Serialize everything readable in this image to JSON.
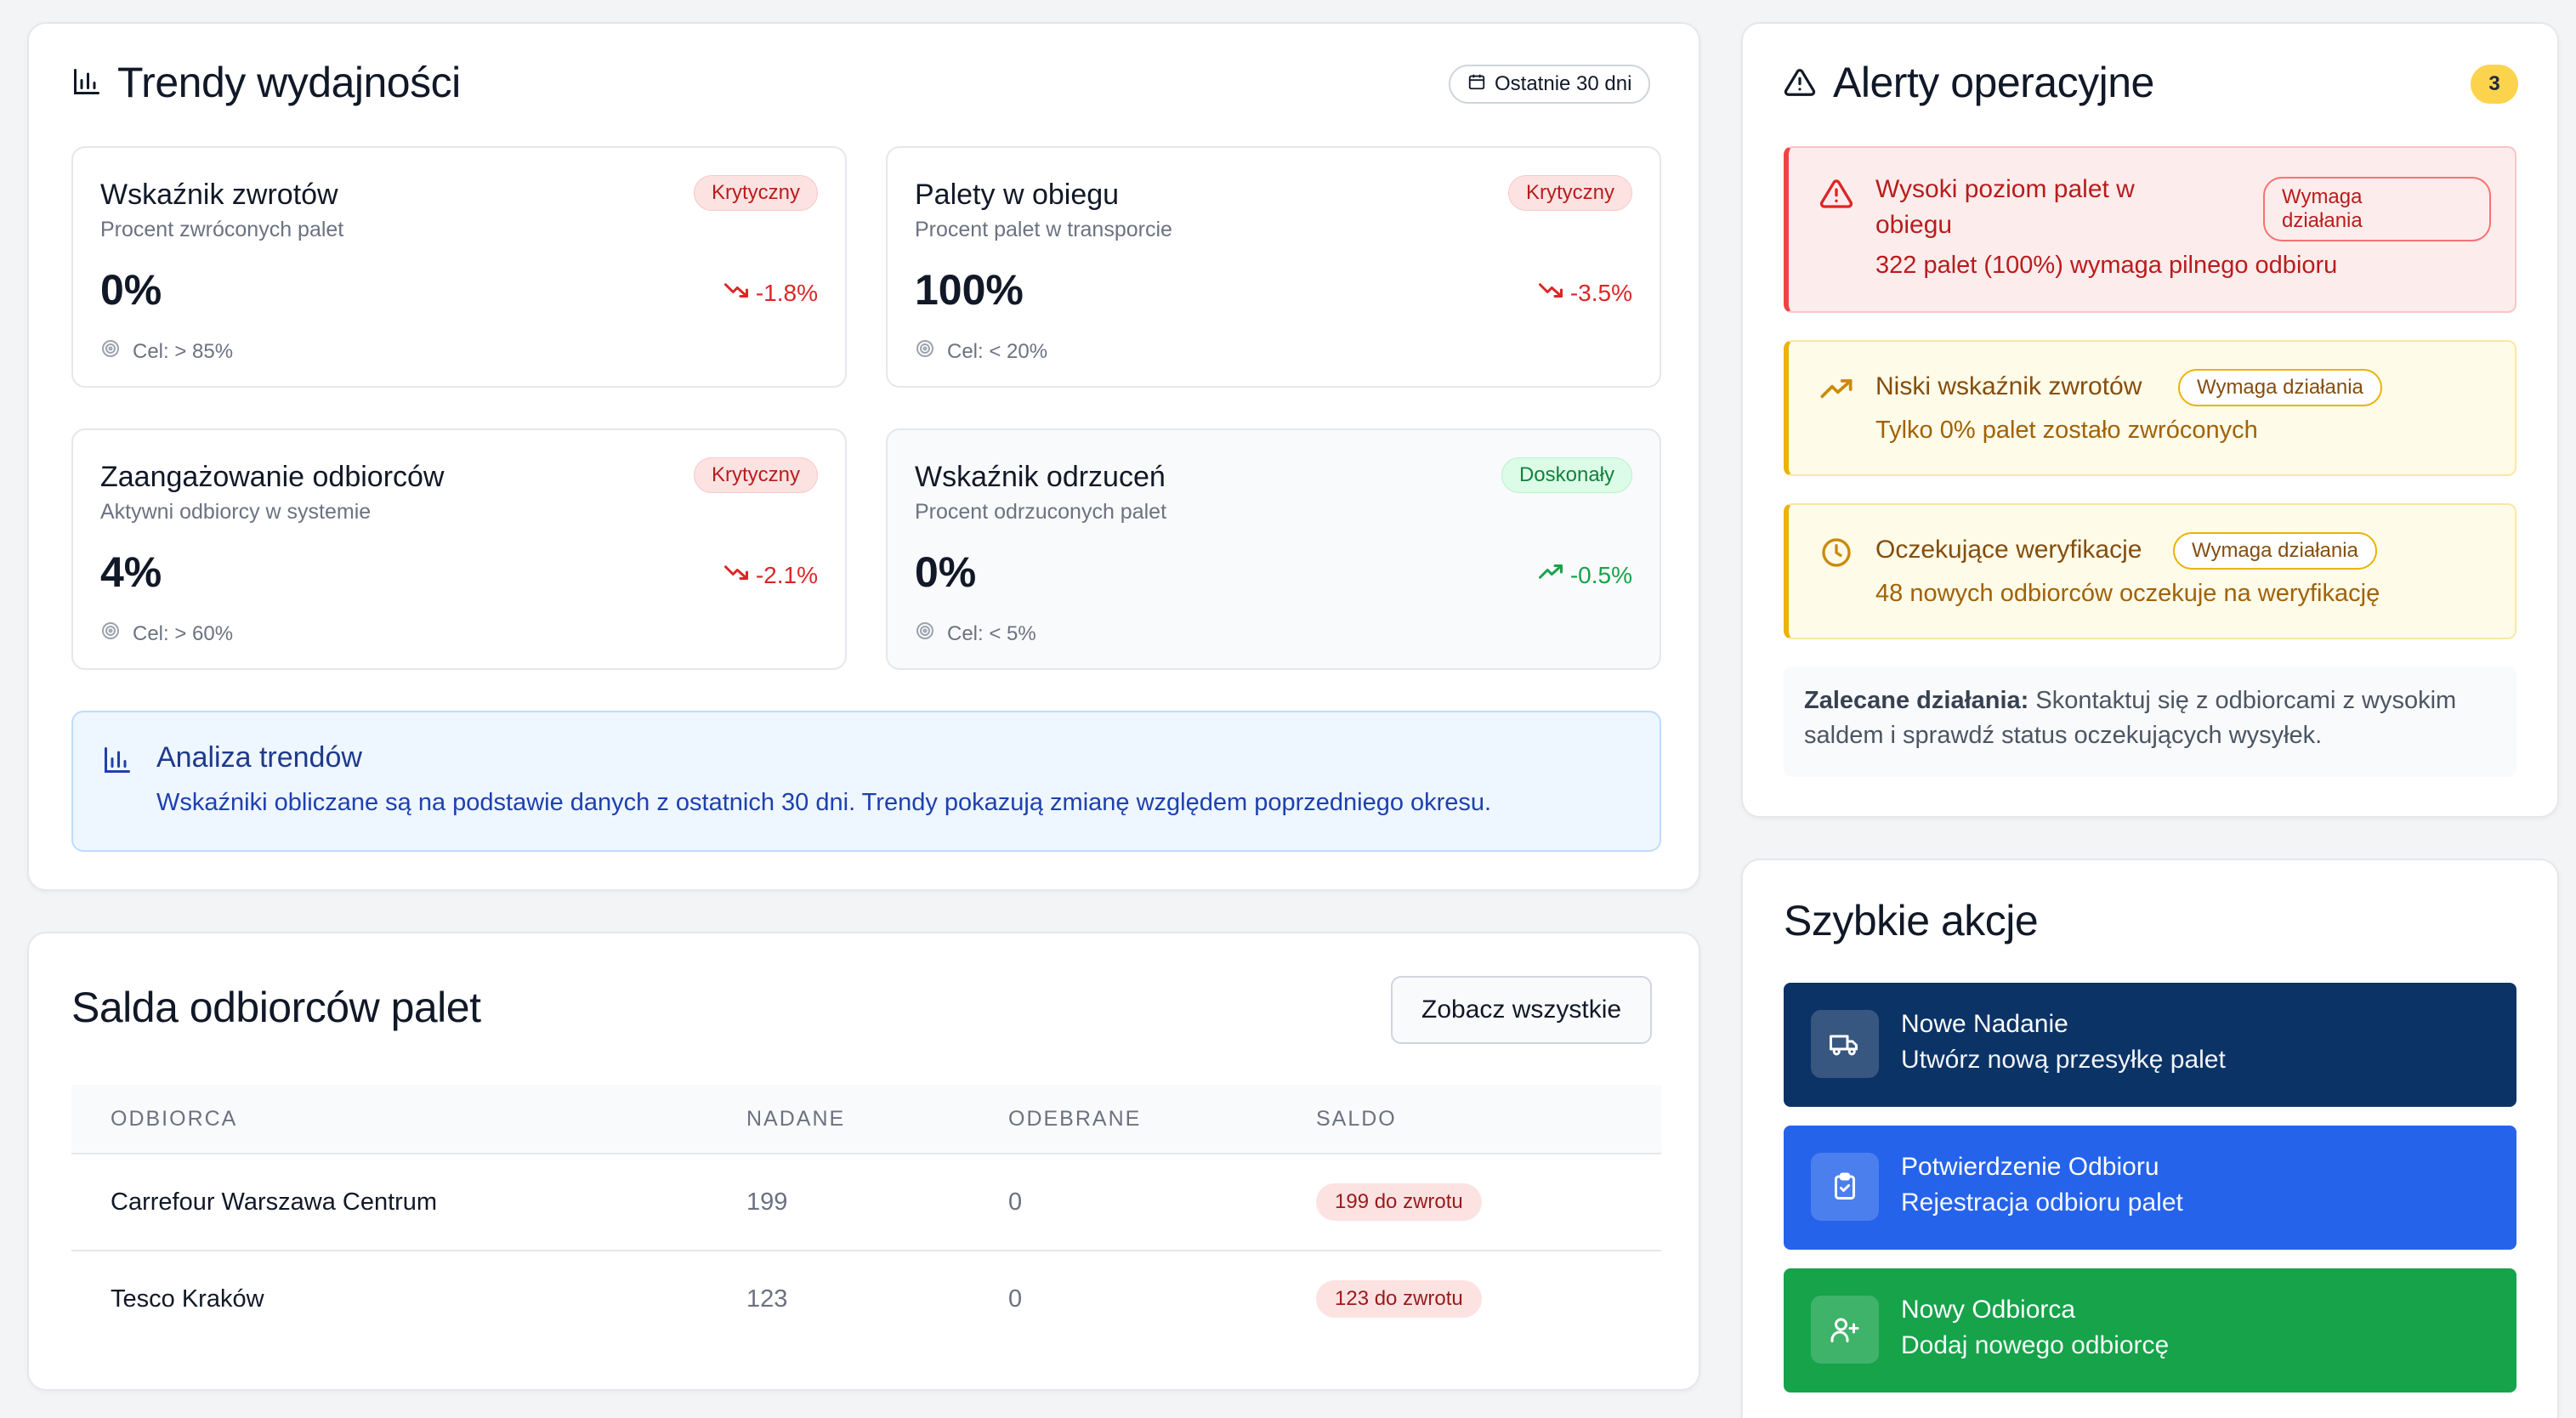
{
  "trends": {
    "title": "Trendy wydajności",
    "range": "Ostatnie 30 dni",
    "metrics": [
      {
        "title": "Wskaźnik zwrotów",
        "subtitle": "Procent zwróconych palet",
        "badge": "Krytyczny",
        "value": "0%",
        "trend": "-1.8%",
        "target": "Cel: > 85%"
      },
      {
        "title": "Palety w obiegu",
        "subtitle": "Procent palet w transporcie",
        "badge": "Krytyczny",
        "value": "100%",
        "trend": "-3.5%",
        "target": "Cel: < 20%"
      },
      {
        "title": "Zaangażowanie odbiorców",
        "subtitle": "Aktywni odbiorcy w systemie",
        "badge": "Krytyczny",
        "value": "4%",
        "trend": "-2.1%",
        "target": "Cel: > 60%"
      },
      {
        "title": "Wskaźnik odrzuceń",
        "subtitle": "Procent odrzuconych palet",
        "badge": "Doskonały",
        "value": "0%",
        "trend": "-0.5%",
        "target": "Cel: < 5%"
      }
    ],
    "analysis": {
      "title": "Analiza trendów",
      "text": "Wskaźniki obliczane są na podstawie danych z ostatnich 30 dni. Trendy pokazują zmianę względem poprzedniego okresu."
    }
  },
  "balances": {
    "title": "Salda odbiorców palet",
    "view_all": "Zobacz wszystkie",
    "columns": [
      "ODBIORCA",
      "NADANE",
      "ODEBRANE",
      "SALDO"
    ],
    "rows": [
      {
        "name": "Carrefour Warszawa Centrum",
        "sent": "199",
        "received": "0",
        "balance": "199 do zwrotu"
      },
      {
        "name": "Tesco Kraków",
        "sent": "123",
        "received": "0",
        "balance": "123 do zwrotu"
      }
    ]
  },
  "alerts": {
    "title": "Alerty operacyjne",
    "count": "3",
    "items": [
      {
        "title_line1": "Wysoki poziom palet w",
        "title_line2": "obiegu",
        "badge_line1": "Wymaga",
        "badge_line2": "działania",
        "desc": "322 palet (100%) wymaga pilnego odbioru"
      },
      {
        "title": "Niski wskaźnik zwrotów",
        "badge": "Wymaga działania",
        "desc": "Tylko 0% palet zostało zwróconych"
      },
      {
        "title": "Oczekujące weryfikacje",
        "badge": "Wymaga działania",
        "desc": "48 nowych odbiorców oczekuje na weryfikację"
      }
    ],
    "recommendation_label": "Zalecane działania:",
    "recommendation_text": " Skontaktuj się z odbiorcami z wysokim saldem i sprawdź status oczekujących wysyłek."
  },
  "quick_actions": {
    "title": "Szybkie akcje",
    "items": [
      {
        "title": "Nowe Nadanie",
        "subtitle": "Utwórz nową przesyłkę palet",
        "color": "#0b3366"
      },
      {
        "title": "Potwierdzenie Odbioru",
        "subtitle": "Rejestracja odbioru palet",
        "color": "#2563eb"
      },
      {
        "title": "Nowy Odbiorca",
        "subtitle": "Dodaj nowego odbiorcę",
        "color": "#16a34a"
      }
    ]
  }
}
